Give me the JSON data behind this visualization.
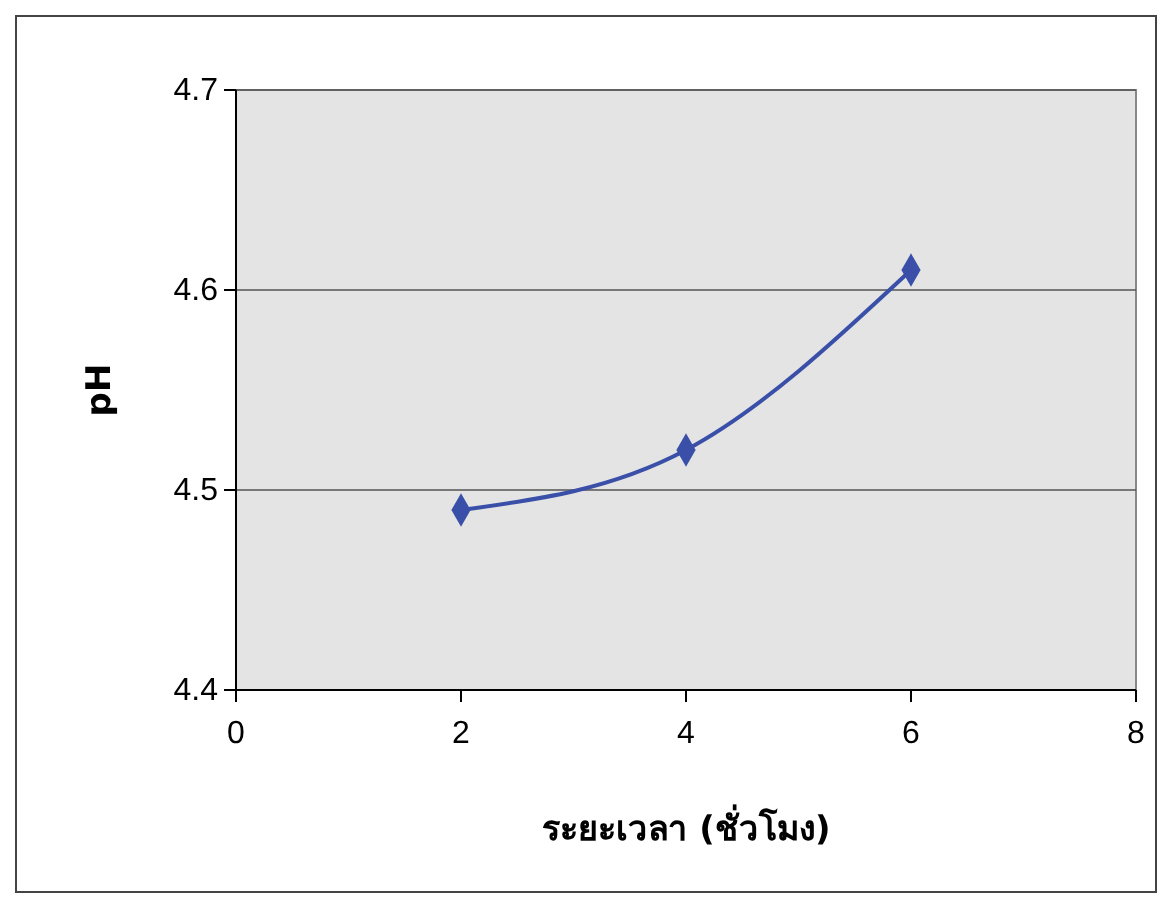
{
  "chart_data": {
    "type": "line",
    "xlabel": "ระยะเวลา (ชั่วโมง)",
    "ylabel": "pH",
    "x": [
      2,
      4,
      6
    ],
    "series": [
      {
        "color": "#3a4fa8",
        "values": [
          4.49,
          4.52,
          4.61
        ]
      }
    ],
    "xlim": [
      0,
      8
    ],
    "xticks": [
      0,
      2,
      4,
      6,
      8
    ],
    "ylim": [
      4.4,
      4.7
    ],
    "yticks": [
      4.4,
      4.5,
      4.6,
      4.7
    ],
    "grid": "y",
    "marker": "diamond",
    "line_style": "solid"
  }
}
